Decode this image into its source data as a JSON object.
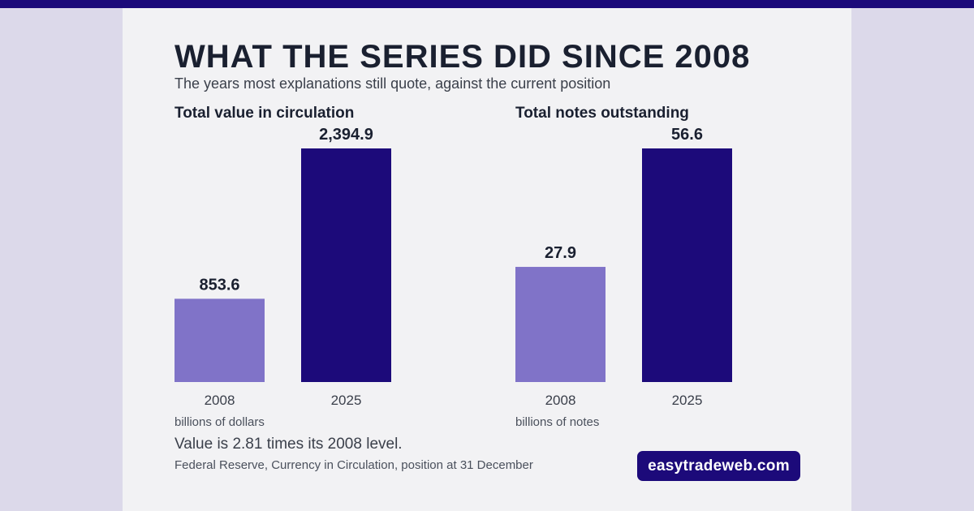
{
  "header": {
    "title": "WHAT THE SERIES DID SINCE 2008",
    "subtitle": "The years most explanations still quote, against the current position"
  },
  "colors": {
    "bar_2008": "#8073c8",
    "bar_2025": "#1c0a7a",
    "accent": "#1c0a7a",
    "text_dark": "#1a2030"
  },
  "chart_data": [
    {
      "type": "bar",
      "title": "Total value in circulation",
      "categories": [
        "2008",
        "2025"
      ],
      "values": [
        853.6,
        2394.9
      ],
      "value_labels": [
        "853.6",
        "2,394.9"
      ],
      "unit": "billions of dollars",
      "ylim": [
        0,
        2394.9
      ],
      "grid": false
    },
    {
      "type": "bar",
      "title": "Total notes outstanding",
      "categories": [
        "2008",
        "2025"
      ],
      "values": [
        27.9,
        56.6
      ],
      "value_labels": [
        "27.9",
        "56.6"
      ],
      "unit": "billions of notes",
      "ylim": [
        0,
        56.6
      ],
      "grid": false
    }
  ],
  "footer": {
    "note": "Value is 2.81 times its 2008 level.",
    "source": "Federal Reserve, Currency in Circulation, position at 31 December",
    "brand": "easytradeweb.com"
  }
}
